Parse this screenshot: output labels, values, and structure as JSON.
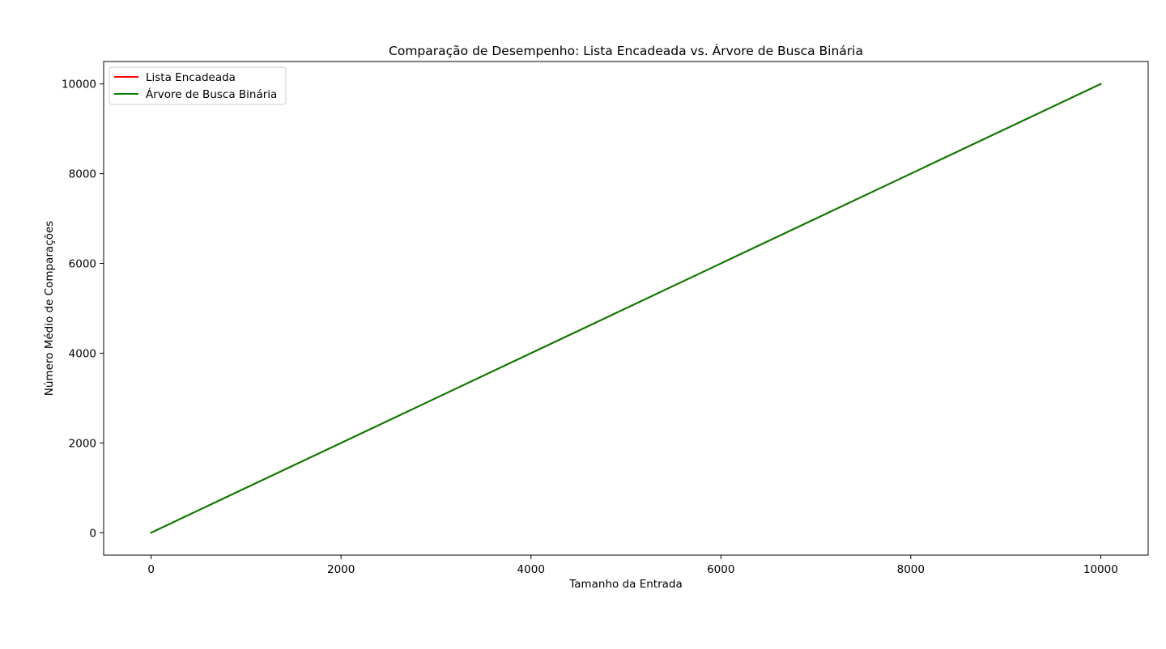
{
  "chart_data": {
    "type": "line",
    "title": "Comparação de Desempenho: Lista Encadeada vs. Árvore de Busca Binária",
    "xlabel": "Tamanho da Entrada",
    "ylabel": "Número Médio de Comparações",
    "xlim": [
      -500,
      10500
    ],
    "ylim": [
      -500,
      10500
    ],
    "x_ticks": [
      0,
      2000,
      4000,
      6000,
      8000,
      10000
    ],
    "y_ticks": [
      0,
      2000,
      4000,
      6000,
      8000,
      10000
    ],
    "x_tick_labels": [
      "0",
      "2000",
      "4000",
      "6000",
      "8000",
      "10000"
    ],
    "y_tick_labels": [
      "0",
      "2000",
      "4000",
      "6000",
      "8000",
      "10000"
    ],
    "grid": false,
    "legend_position": "top-left",
    "series": [
      {
        "name": "Lista Encadeada",
        "color": "#ff0000",
        "x": [
          0,
          10000
        ],
        "y": [
          0,
          10000
        ]
      },
      {
        "name": "Árvore de Busca Binária",
        "color": "#008000",
        "x": [
          0,
          10000
        ],
        "y": [
          0,
          10000
        ]
      }
    ]
  }
}
